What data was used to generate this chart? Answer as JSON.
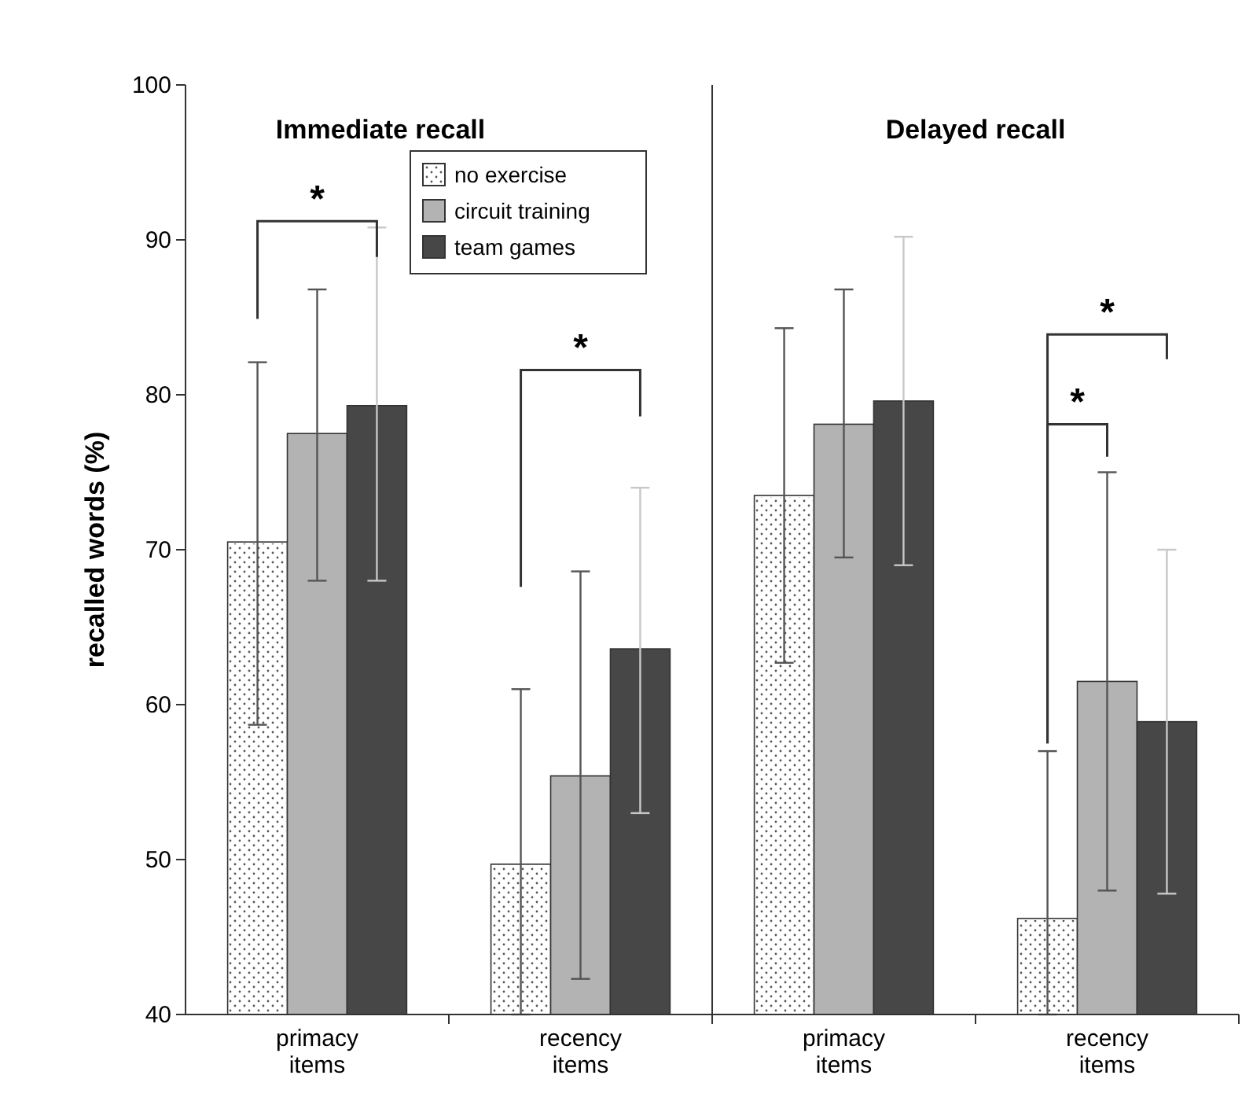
{
  "chart_data": [
    {
      "type": "bar",
      "title": "Immediate recall",
      "ylabel": "recalled words (%)",
      "categories": [
        "primacy items",
        "recency items"
      ],
      "ylim": [
        40,
        100
      ],
      "yticks": [
        40,
        50,
        60,
        70,
        80,
        90,
        100
      ],
      "grid": false,
      "legend": "top right",
      "annotations": [
        "*",
        "*"
      ],
      "series": [
        {
          "name": "no exercise",
          "color": "#ffffff",
          "values": [
            70.5,
            49.7
          ],
          "errors": [
            [
              58.7,
              82.1
            ],
            [
              40,
              61
            ]
          ]
        },
        {
          "name": "circuit training",
          "color": "#b3b3b3",
          "values": [
            77.5,
            55.4
          ],
          "errors": [
            [
              68,
              86.8
            ],
            [
              42.3,
              68.6
            ]
          ]
        },
        {
          "name": "team games",
          "color": "#474747",
          "values": [
            79.3,
            63.6
          ],
          "errors": [
            [
              68,
              90.8
            ],
            [
              53,
              74
            ]
          ]
        }
      ]
    },
    {
      "type": "bar",
      "title": "Delayed recall",
      "categories": [
        "primacy items",
        "recency items"
      ],
      "ylim": [
        40,
        100
      ],
      "yticks": [
        40,
        50,
        60,
        70,
        80,
        90,
        100
      ],
      "tick_labels": "x",
      "grid": false,
      "annotations": [
        "*",
        "*"
      ],
      "series": [
        {
          "color": "#ffffff",
          "values": [
            73.5,
            46.2
          ],
          "errors": [
            [
              62.7,
              84.3
            ],
            [
              40,
              57
            ]
          ]
        },
        {
          "color": "#b3b3b3",
          "values": [
            78.1,
            61.5
          ],
          "errors": [
            [
              69.5,
              86.8
            ],
            [
              48,
              75
            ]
          ]
        },
        {
          "color": "#474747",
          "values": [
            79.6,
            58.9
          ],
          "errors": [
            [
              69,
              90.2
            ],
            [
              47.8,
              70
            ]
          ]
        }
      ]
    }
  ]
}
